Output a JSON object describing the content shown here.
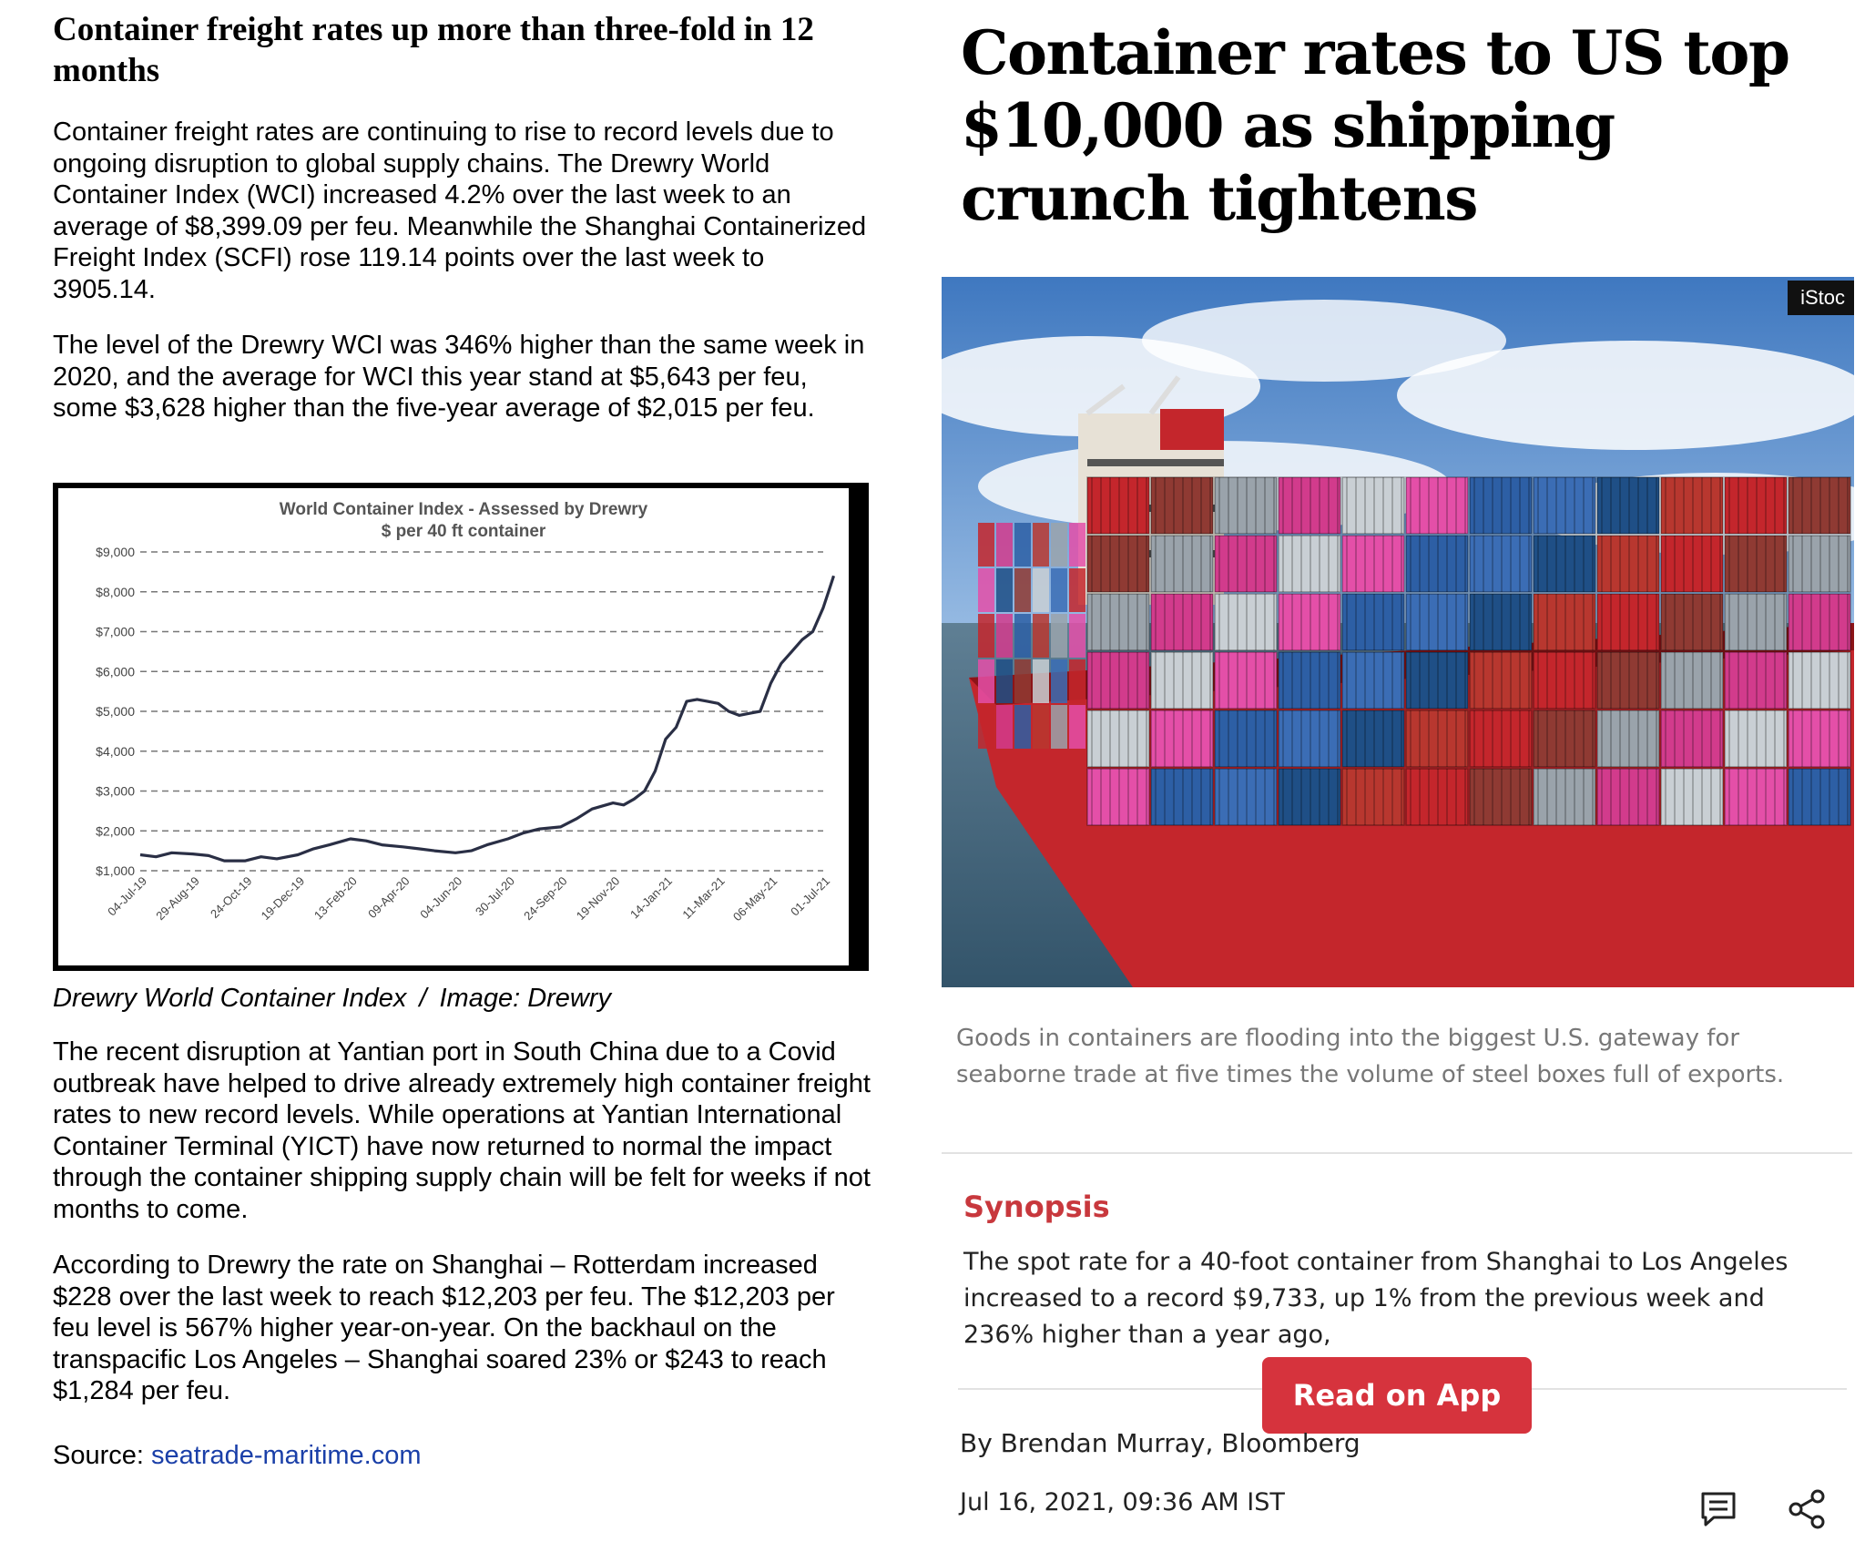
{
  "left": {
    "title": "Container freight rates up more than three-fold in 12 months",
    "paragraphs": [
      "Container freight rates are continuing to rise to record levels due to ongoing disruption to global supply chains.  The Drewry World Container Index (WCI) increased 4.2% over the last week to an average of $8,399.09 per feu. Meanwhile the Shanghai Containerized Freight Index (SCFI) rose 119.14 points over the last week to 3905.14.",
      "The level of the Drewry WCI was 346% higher than the same week in 2020, and the average for WCI this year stand at $5,643 per feu, some $3,628 higher than the five-year average of $2,015 per feu.",
      "The recent disruption at Yantian port in South China due to a Covid outbreak have helped to drive already extremely high container freight rates to new record levels. While operations at Yantian International Container Terminal (YICT) have now returned to normal the impact through the container shipping supply chain will be felt for weeks if not months to come.",
      "According to Drewry the rate on Shanghai – Rotterdam increased $228 over the last week to reach $12,203 per feu. The $12,203 per feu level is 567% higher year-on-year. On the backhaul on the transpacific Los Angeles – Shanghai soared 23% or $243 to reach $1,284 per feu."
    ],
    "caption_a": "Drewry World Container Index",
    "caption_sep": "/",
    "caption_b": "Image: Drewry",
    "source_label": "Source: ",
    "source_link": "seatrade-maritime.com"
  },
  "chart_data": {
    "type": "line",
    "title": "World Container Index - Assessed by Drewry",
    "subtitle": "$ per 40 ft container",
    "yticks": [
      "$1,000",
      "$2,000",
      "$3,000",
      "$4,000",
      "$5,000",
      "$6,000",
      "$7,000",
      "$8,000",
      "$9,000"
    ],
    "ylim": [
      1000,
      9000
    ],
    "xticks": [
      "04-Jul-19",
      "29-Aug-19",
      "24-Oct-19",
      "19-Dec-19",
      "13-Feb-20",
      "09-Apr-20",
      "04-Jun-20",
      "30-Jul-20",
      "24-Sep-20",
      "19-Nov-20",
      "14-Jan-21",
      "11-Mar-21",
      "06-May-21",
      "01-Jul-21"
    ],
    "grid": true,
    "series": [
      {
        "x": [
          0,
          0.3,
          0.6,
          1,
          1.3,
          1.6,
          2,
          2.3,
          2.6,
          3,
          3.3,
          3.6,
          4,
          4.3,
          4.6,
          5,
          5.3,
          5.6,
          6,
          6.3,
          6.6,
          7,
          7.3,
          7.6,
          8,
          8.3,
          8.6,
          9,
          9.2,
          9.4,
          9.6,
          9.8,
          10,
          10.2,
          10.4,
          10.6,
          10.8,
          11,
          11.2,
          11.4,
          11.6,
          11.8,
          12,
          12.2,
          12.4,
          12.6,
          12.8,
          13,
          13.1,
          13.2
        ],
        "values": [
          1400,
          1350,
          1450,
          1420,
          1380,
          1250,
          1250,
          1350,
          1300,
          1400,
          1550,
          1650,
          1800,
          1750,
          1650,
          1600,
          1550,
          1500,
          1450,
          1500,
          1650,
          1800,
          1950,
          2050,
          2100,
          2300,
          2550,
          2700,
          2650,
          2800,
          3000,
          3500,
          4300,
          4600,
          5250,
          5300,
          5250,
          5200,
          5000,
          4900,
          4950,
          5000,
          5700,
          6200,
          6500,
          6800,
          7000,
          7600,
          8000,
          8400
        ]
      }
    ]
  },
  "right": {
    "title": "Container rates to US top $10,000 as shipping crunch tightens",
    "photo_badge": "iStoc",
    "photo_caption": "Goods in containers are flooding into the biggest U.S. gateway for seaborne trade at five times the volume of steel boxes full of exports.",
    "synopsis_heading": "Synopsis",
    "synopsis_text": "The spot rate for a 40-foot container from Shanghai to Los Angeles increased to a record $9,733, up 1% from the previous week and 236% higher than a year ago,",
    "read_button": "Read on App",
    "byline": "By Brendan Murray, Bloomberg",
    "date": "Jul 16, 2021, 09:36 AM IST"
  },
  "colors": {
    "synopsis_red": "#c8383d",
    "button_red": "#d6333d",
    "link_blue": "#1a3fa8",
    "chart_line": "#2a2f45"
  },
  "icons": [
    "comment-icon",
    "share-icon"
  ]
}
